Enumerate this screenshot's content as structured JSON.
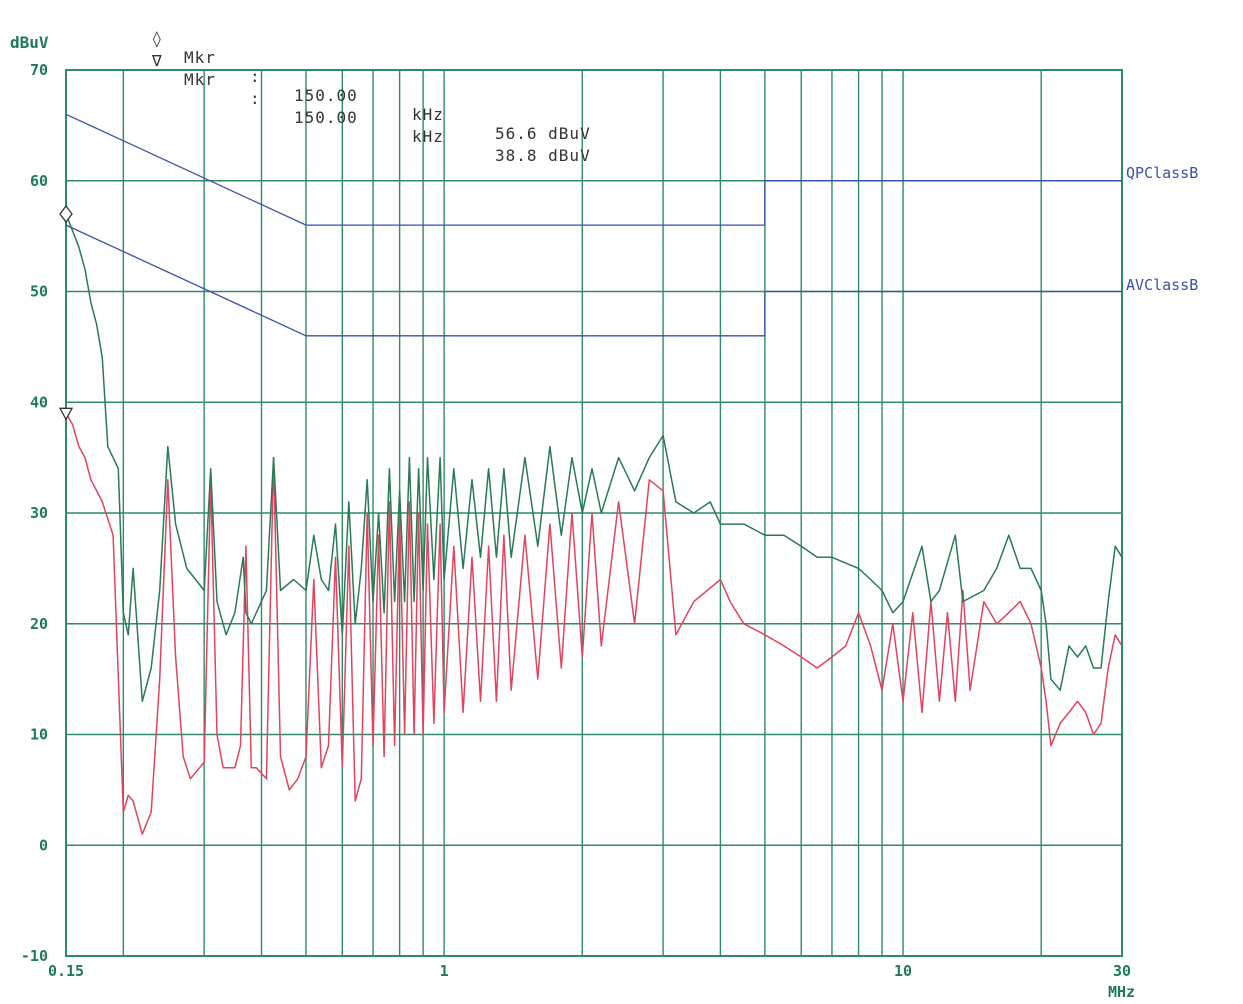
{
  "markers": [
    {
      "symbol": "◊",
      "label": "Mkr",
      "sep": ":",
      "freq": "150.00",
      "freq_unit": "kHz",
      "level": "56.6 dBuV"
    },
    {
      "symbol": "∇",
      "label": "Mkr",
      "sep": ":",
      "freq": "150.00",
      "freq_unit": "kHz",
      "level": "38.8 dBuV"
    }
  ],
  "colors": {
    "grid": "#2e8b6a",
    "axis_text": "#1f7a5a",
    "limits": "#3a4fb0",
    "qp_trace": "#2a7a55",
    "av_trace": "#e0445e"
  },
  "chart_data": {
    "type": "line",
    "title": "",
    "xlabel": "MHz",
    "ylabel": "dBuV",
    "x_scale": "log",
    "xlim": [
      0.15,
      30
    ],
    "ylim": [
      -10,
      70
    ],
    "x_tick_labels": [
      "0.15",
      "1",
      "10",
      "30"
    ],
    "y_tick_labels": [
      "70",
      "60",
      "50",
      "40",
      "30",
      "20",
      "10",
      "0",
      "-10"
    ],
    "x_grid": [
      0.15,
      0.2,
      0.3,
      0.4,
      0.5,
      0.6,
      0.7,
      0.8,
      0.9,
      1,
      2,
      3,
      4,
      5,
      6,
      7,
      8,
      9,
      10,
      20,
      30
    ],
    "y_grid": [
      -10,
      0,
      10,
      20,
      30,
      40,
      50,
      60,
      70
    ],
    "grid": true,
    "limits": [
      {
        "name": "QPClassB",
        "points": [
          [
            0.15,
            66
          ],
          [
            0.5,
            56
          ],
          [
            5,
            56
          ],
          [
            5,
            60
          ],
          [
            30,
            60
          ]
        ]
      },
      {
        "name": "AVClassB",
        "points": [
          [
            0.15,
            56
          ],
          [
            0.5,
            46
          ],
          [
            5,
            46
          ],
          [
            5,
            50
          ],
          [
            30,
            50
          ]
        ]
      }
    ],
    "series": [
      {
        "points": [
          [
            0.15,
            57
          ],
          [
            0.155,
            55.5
          ],
          [
            0.16,
            54
          ],
          [
            0.165,
            52
          ],
          [
            0.17,
            49
          ],
          [
            0.175,
            47
          ],
          [
            0.18,
            44
          ],
          [
            0.185,
            36
          ],
          [
            0.19,
            35
          ],
          [
            0.195,
            34
          ],
          [
            0.2,
            21
          ],
          [
            0.205,
            19
          ],
          [
            0.21,
            25
          ],
          [
            0.22,
            13
          ],
          [
            0.23,
            16
          ],
          [
            0.24,
            23
          ],
          [
            0.25,
            36
          ],
          [
            0.26,
            29
          ],
          [
            0.275,
            25
          ],
          [
            0.3,
            23
          ],
          [
            0.31,
            34
          ],
          [
            0.32,
            22
          ],
          [
            0.335,
            19
          ],
          [
            0.35,
            21
          ],
          [
            0.365,
            26
          ],
          [
            0.37,
            21
          ],
          [
            0.38,
            20
          ],
          [
            0.41,
            23
          ],
          [
            0.425,
            35
          ],
          [
            0.44,
            23
          ],
          [
            0.47,
            24
          ],
          [
            0.5,
            23
          ],
          [
            0.52,
            28
          ],
          [
            0.54,
            24
          ],
          [
            0.56,
            23
          ],
          [
            0.58,
            29
          ],
          [
            0.6,
            19
          ],
          [
            0.62,
            31
          ],
          [
            0.64,
            20
          ],
          [
            0.66,
            25
          ],
          [
            0.68,
            33
          ],
          [
            0.7,
            22
          ],
          [
            0.72,
            30
          ],
          [
            0.74,
            21
          ],
          [
            0.76,
            34
          ],
          [
            0.78,
            22
          ],
          [
            0.8,
            32
          ],
          [
            0.82,
            22
          ],
          [
            0.84,
            35
          ],
          [
            0.86,
            22
          ],
          [
            0.88,
            34
          ],
          [
            0.9,
            23
          ],
          [
            0.92,
            35
          ],
          [
            0.95,
            24
          ],
          [
            0.98,
            35
          ],
          [
            1,
            24
          ],
          [
            1.05,
            34
          ],
          [
            1.1,
            25
          ],
          [
            1.15,
            33
          ],
          [
            1.2,
            26
          ],
          [
            1.25,
            34
          ],
          [
            1.3,
            26
          ],
          [
            1.35,
            34
          ],
          [
            1.4,
            26
          ],
          [
            1.5,
            35
          ],
          [
            1.6,
            27
          ],
          [
            1.7,
            36
          ],
          [
            1.8,
            28
          ],
          [
            1.9,
            35
          ],
          [
            2,
            30
          ],
          [
            2.1,
            34
          ],
          [
            2.2,
            30
          ],
          [
            2.4,
            35
          ],
          [
            2.6,
            32
          ],
          [
            2.8,
            35
          ],
          [
            3,
            37
          ],
          [
            3.2,
            31
          ],
          [
            3.5,
            30
          ],
          [
            3.8,
            31
          ],
          [
            4,
            29
          ],
          [
            4.5,
            29
          ],
          [
            5,
            28
          ],
          [
            5.5,
            28
          ],
          [
            6,
            27
          ],
          [
            6.5,
            26
          ],
          [
            7,
            26
          ],
          [
            8,
            25
          ],
          [
            8.5,
            24
          ],
          [
            9,
            23
          ],
          [
            9.5,
            21
          ],
          [
            10,
            22
          ],
          [
            11,
            27
          ],
          [
            11.5,
            22
          ],
          [
            12,
            23
          ],
          [
            13,
            28
          ],
          [
            13.5,
            22
          ],
          [
            15,
            23
          ],
          [
            16,
            25
          ],
          [
            17,
            28
          ],
          [
            18,
            25
          ],
          [
            19,
            25
          ],
          [
            20,
            23
          ],
          [
            20.5,
            20
          ],
          [
            21,
            15
          ],
          [
            22,
            14
          ],
          [
            23,
            18
          ],
          [
            24,
            17
          ],
          [
            25,
            18
          ],
          [
            26,
            16
          ],
          [
            27,
            16
          ],
          [
            28,
            22
          ],
          [
            29,
            27
          ],
          [
            30,
            26
          ]
        ]
      },
      {
        "points": [
          [
            0.15,
            39
          ],
          [
            0.155,
            38
          ],
          [
            0.16,
            36
          ],
          [
            0.165,
            35
          ],
          [
            0.17,
            33
          ],
          [
            0.175,
            32
          ],
          [
            0.18,
            31
          ],
          [
            0.19,
            28
          ],
          [
            0.2,
            3
          ],
          [
            0.205,
            4.5
          ],
          [
            0.21,
            4
          ],
          [
            0.22,
            1
          ],
          [
            0.23,
            3
          ],
          [
            0.24,
            15
          ],
          [
            0.25,
            33
          ],
          [
            0.26,
            17
          ],
          [
            0.27,
            8
          ],
          [
            0.28,
            6
          ],
          [
            0.3,
            7.5
          ],
          [
            0.31,
            33
          ],
          [
            0.32,
            10
          ],
          [
            0.33,
            7
          ],
          [
            0.35,
            7
          ],
          [
            0.36,
            9
          ],
          [
            0.37,
            27
          ],
          [
            0.38,
            7
          ],
          [
            0.39,
            7
          ],
          [
            0.41,
            6
          ],
          [
            0.425,
            35
          ],
          [
            0.44,
            8
          ],
          [
            0.46,
            5
          ],
          [
            0.48,
            6
          ],
          [
            0.5,
            8
          ],
          [
            0.52,
            24
          ],
          [
            0.54,
            7
          ],
          [
            0.56,
            9
          ],
          [
            0.58,
            26
          ],
          [
            0.6,
            7
          ],
          [
            0.62,
            27
          ],
          [
            0.64,
            4
          ],
          [
            0.66,
            6
          ],
          [
            0.68,
            30
          ],
          [
            0.7,
            9
          ],
          [
            0.72,
            28
          ],
          [
            0.74,
            8
          ],
          [
            0.76,
            31
          ],
          [
            0.78,
            9
          ],
          [
            0.8,
            30
          ],
          [
            0.82,
            10
          ],
          [
            0.84,
            31
          ],
          [
            0.86,
            10
          ],
          [
            0.88,
            30
          ],
          [
            0.9,
            10
          ],
          [
            0.92,
            29
          ],
          [
            0.95,
            11
          ],
          [
            0.98,
            29
          ],
          [
            1,
            12
          ],
          [
            1.05,
            27
          ],
          [
            1.1,
            12
          ],
          [
            1.15,
            26
          ],
          [
            1.2,
            13
          ],
          [
            1.25,
            27
          ],
          [
            1.3,
            13
          ],
          [
            1.35,
            28
          ],
          [
            1.4,
            14
          ],
          [
            1.5,
            28
          ],
          [
            1.6,
            15
          ],
          [
            1.7,
            29
          ],
          [
            1.8,
            16
          ],
          [
            1.9,
            30
          ],
          [
            2,
            17
          ],
          [
            2.1,
            30
          ],
          [
            2.2,
            18
          ],
          [
            2.4,
            31
          ],
          [
            2.6,
            20
          ],
          [
            2.8,
            33
          ],
          [
            3,
            32
          ],
          [
            3.2,
            19
          ],
          [
            3.5,
            22
          ],
          [
            4,
            24
          ],
          [
            4.2,
            22
          ],
          [
            4.5,
            20
          ],
          [
            5,
            19
          ],
          [
            5.5,
            18
          ],
          [
            6,
            17
          ],
          [
            6.5,
            16
          ],
          [
            7,
            17
          ],
          [
            7.5,
            18
          ],
          [
            8,
            21
          ],
          [
            8.5,
            18
          ],
          [
            9,
            14
          ],
          [
            9.5,
            20
          ],
          [
            10,
            13
          ],
          [
            10.5,
            21
          ],
          [
            11,
            12
          ],
          [
            11.5,
            22
          ],
          [
            12,
            13
          ],
          [
            12.5,
            21
          ],
          [
            13,
            13
          ],
          [
            13.5,
            23
          ],
          [
            14,
            14
          ],
          [
            15,
            22
          ],
          [
            16,
            20
          ],
          [
            17,
            21
          ],
          [
            18,
            22
          ],
          [
            19,
            20
          ],
          [
            20,
            16
          ],
          [
            20.5,
            13
          ],
          [
            21,
            9
          ],
          [
            22,
            11
          ],
          [
            23,
            12
          ],
          [
            24,
            13
          ],
          [
            25,
            12
          ],
          [
            26,
            10
          ],
          [
            27,
            11
          ],
          [
            28,
            16
          ],
          [
            29,
            19
          ],
          [
            30,
            18
          ]
        ]
      }
    ],
    "markers": [
      {
        "symbol": "diamond",
        "x": 0.15,
        "y": 57
      },
      {
        "symbol": "triangle-down",
        "x": 0.15,
        "y": 39
      }
    ]
  }
}
